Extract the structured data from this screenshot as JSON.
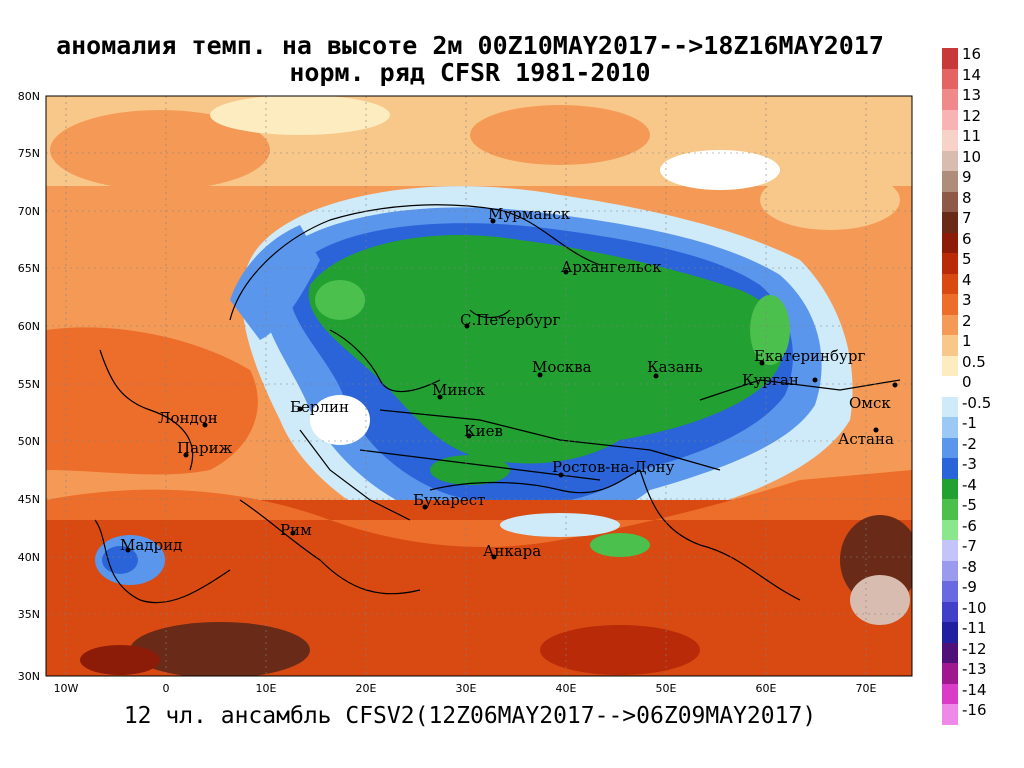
{
  "header": {
    "line1": "аномалия темп. на высоте 2м 00Z10MAY2017-->18Z16MAY2017",
    "line2": "норм. ряд CFSR 1981-2010"
  },
  "footer": "12 чл. ансамбль CFSV2(12Z06MAY2017-->06Z09MAY2017)",
  "axes": {
    "lat_labels": [
      "80N",
      "75N",
      "70N",
      "65N",
      "60N",
      "55N",
      "50N",
      "45N",
      "40N",
      "35N",
      "30N"
    ],
    "lon_labels": [
      "10W",
      "0",
      "10E",
      "20E",
      "30E",
      "40E",
      "50E",
      "60E",
      "70E"
    ]
  },
  "cities": [
    {
      "name": "Мурманск"
    },
    {
      "name": "Архангельск"
    },
    {
      "name": "С.Петербург"
    },
    {
      "name": "Москва"
    },
    {
      "name": "Казань"
    },
    {
      "name": "Екатеринбург"
    },
    {
      "name": "Курган"
    },
    {
      "name": "Омск"
    },
    {
      "name": "Астана"
    },
    {
      "name": "Минск"
    },
    {
      "name": "Берлин"
    },
    {
      "name": "Лондон"
    },
    {
      "name": "Париж"
    },
    {
      "name": "Киев"
    },
    {
      "name": "Ростов-на-Дону"
    },
    {
      "name": "Бухарест"
    },
    {
      "name": "Мадрид"
    },
    {
      "name": "Рим"
    },
    {
      "name": "Анкара"
    }
  ],
  "legend": [
    {
      "label": "16",
      "color": "#c83a3a"
    },
    {
      "label": "14",
      "color": "#e46464"
    },
    {
      "label": "13",
      "color": "#f08a8a"
    },
    {
      "label": "12",
      "color": "#f8b4b4"
    },
    {
      "label": "11",
      "color": "#f6d2c8"
    },
    {
      "label": "10",
      "color": "#d8bcb0"
    },
    {
      "label": "9",
      "color": "#b08c7a"
    },
    {
      "label": "8",
      "color": "#8c5a46"
    },
    {
      "label": "7",
      "color": "#6a2a18"
    },
    {
      "label": "6",
      "color": "#8c1c08"
    },
    {
      "label": "5",
      "color": "#b82a08"
    },
    {
      "label": "4",
      "color": "#d84a12"
    },
    {
      "label": "3",
      "color": "#ec6e2a"
    },
    {
      "label": "2",
      "color": "#f49a56"
    },
    {
      "label": "1",
      "color": "#f8c88a"
    },
    {
      "label": "0.5",
      "color": "#fcecc0"
    },
    {
      "label": "0",
      "color": "#ffffff"
    },
    {
      "label": "-0.5",
      "color": "#cfeaf8"
    },
    {
      "label": "-1",
      "color": "#9cc8f4"
    },
    {
      "label": "-2",
      "color": "#5a96ec"
    },
    {
      "label": "-3",
      "color": "#2a64d8"
    },
    {
      "label": "-4",
      "color": "#22a032"
    },
    {
      "label": "-5",
      "color": "#4cc04c"
    },
    {
      "label": "-6",
      "color": "#8ce68c"
    },
    {
      "label": "-7",
      "color": "#c4c4f8"
    },
    {
      "label": "-8",
      "color": "#9a9aee"
    },
    {
      "label": "-9",
      "color": "#6a6ae0"
    },
    {
      "label": "-10",
      "color": "#4040c8"
    },
    {
      "label": "-11",
      "color": "#2020a0"
    },
    {
      "label": "-12",
      "color": "#50107a"
    },
    {
      "label": "-13",
      "color": "#a01890"
    },
    {
      "label": "-14",
      "color": "#d83cc8"
    },
    {
      "label": "-16",
      "color": "#f088e8"
    }
  ]
}
